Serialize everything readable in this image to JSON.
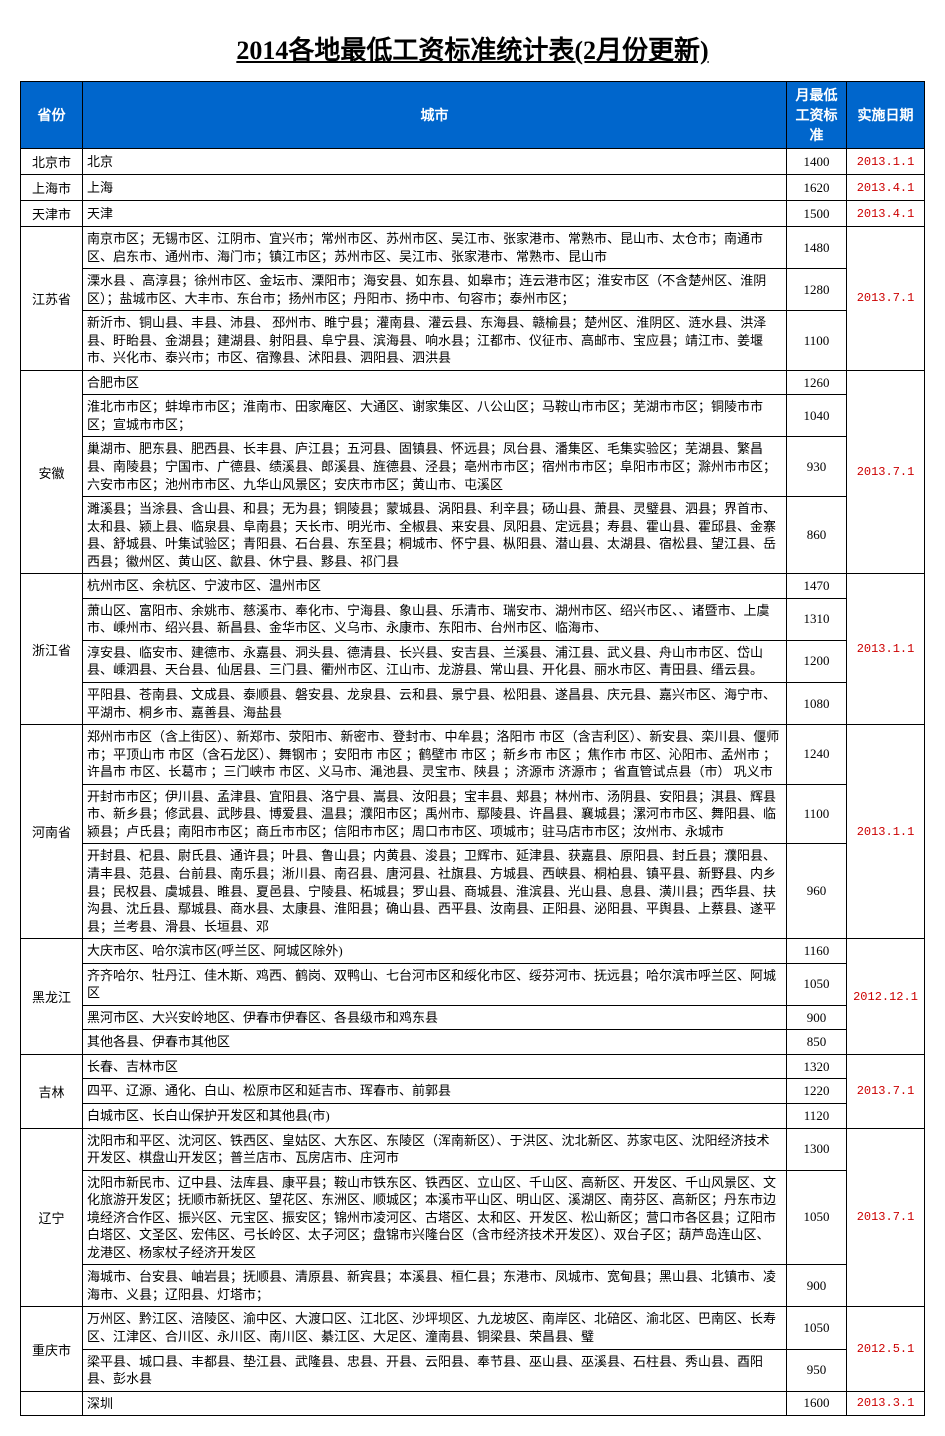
{
  "title": "2014各地最低工资标准统计表(2月份更新)",
  "columns": {
    "province": "省份",
    "city": "城市",
    "wage": "月最低工资标准",
    "date": "实施日期"
  },
  "colors": {
    "header_bg": "#0066cc",
    "header_fg": "#ffffff",
    "border": "#000000",
    "date_fg": "#cc0000",
    "background": "#ffffff"
  },
  "provinces": [
    {
      "name": "北京市",
      "date": "2013.1.1",
      "rows": [
        {
          "city": "北京",
          "wage": 1400
        }
      ]
    },
    {
      "name": "上海市",
      "date": "2013.4.1",
      "rows": [
        {
          "city": "上海",
          "wage": 1620
        }
      ]
    },
    {
      "name": "天津市",
      "date": "2013.4.1",
      "rows": [
        {
          "city": "天津",
          "wage": 1500
        }
      ]
    },
    {
      "name": "江苏省",
      "date": "2013.7.1",
      "rows": [
        {
          "city": "南京市区；无锡市区、江阴市、宜兴市；常州市区、苏州市区、吴江市、张家港市、常熟市、昆山市、太仓市；南通市区、启东市、通州市、海门市；镇江市区；苏州市区、吴江市、张家港市、常熟市、昆山市",
          "wage": 1480
        },
        {
          "city": "溧水县 、高淳县；徐州市区、金坛市、溧阳市；海安县、如东县、如皋市；连云港市区；淮安市区（不含楚州区、淮阴区）；盐城市区、大丰市、东台市；扬州市区；丹阳市、扬中市、句容市；泰州市区；",
          "wage": 1280
        },
        {
          "city": "新沂市、铜山县、丰县、沛县、 邳州市、睢宁县；灌南县、灌云县、东海县、赣榆县；楚州区、淮阴区、涟水县、洪泽县、盱眙县、金湖县；建湖县、射阳县、阜宁县、滨海县、响水县；江都市、仪征市、高邮市、宝应县；靖江市、姜堰市、兴化市、泰兴市；市区、宿豫县、沭阳县、泗阳县、泗洪县",
          "wage": 1100
        }
      ]
    },
    {
      "name": "安徽",
      "date": "2013.7.1",
      "rows": [
        {
          "city": "合肥市区",
          "wage": 1260
        },
        {
          "city": "淮北市市区；蚌埠市市区；淮南市、田家庵区、大通区、谢家集区、八公山区；马鞍山市市区；芜湖市市区；铜陵市市区；宣城市市区；",
          "wage": 1040
        },
        {
          "city": "巢湖市、肥东县、肥西县、长丰县、庐江县；五河县、固镇县、怀远县；凤台县、潘集区、毛集实验区；芜湖县、繁昌县、南陵县；宁国市、广德县、绩溪县、郎溪县、旌德县、泾县；亳州市市区；宿州市市区；阜阳市市区；滁州市市区；六安市市区；池州市市区、九华山风景区；安庆市市区；黄山市、屯溪区",
          "wage": 930
        },
        {
          "city": "濉溪县；当涂县、含山县、和县；无为县；铜陵县；蒙城县、涡阳县、利辛县；砀山县、萧县、灵璧县、泗县；界首市、太和县、颍上县、临泉县、阜南县；天长市、明光市、全椒县、来安县、凤阳县、定远县；寿县、霍山县、霍邱县、金寨县、舒城县、叶集试验区；青阳县、石台县、东至县；桐城市、怀宁县、枞阳县、潜山县、太湖县、宿松县、望江县、岳西县；徽州区、黄山区、歙县、休宁县、黟县、祁门县",
          "wage": 860
        }
      ]
    },
    {
      "name": "浙江省",
      "date": "2013.1.1",
      "rows": [
        {
          "city": "杭州市区、余杭区、宁波市区、温州市区",
          "wage": 1470
        },
        {
          "city": "萧山区、富阳市、余姚市、慈溪市、奉化市、宁海县、象山县、乐清市、瑞安市、湖州市区、绍兴市区、、诸暨市、上虞市、嵊州市、绍兴县、新昌县、金华市区、义乌市、永康市、东阳市、台州市区、临海市、",
          "wage": 1310
        },
        {
          "city": "淳安县、临安市、建德市、永嘉县、洞头县、德清县、长兴县、安吉县、兰溪县、浦江县、武义县、舟山市市区、岱山县、嵊泗县、天台县、仙居县、三门县、衢州市区、江山市、龙游县、常山县、开化县、丽水市区、青田县、缙云县。",
          "wage": 1200
        },
        {
          "city": "平阳县、苍南县、文成县、泰顺县、磐安县、龙泉县、云和县、景宁县、松阳县、遂昌县、庆元县、嘉兴市区、海宁市、平湖市、桐乡市、嘉善县、海盐县",
          "wage": 1080
        }
      ]
    },
    {
      "name": "河南省",
      "date": "2013.1.1",
      "rows": [
        {
          "city": "郑州市市区（含上街区）、新郑市、荥阳市、新密市、登封市、中牟县；洛阳市 市区（含吉利区）、新安县、栾川县、偃师市；平顶山市 市区（含石龙区）、舞钢市 ；安阳市 市区 ；鹤壁市 市区 ；新乡市 市区 ；焦作市 市区、沁阳市、孟州市 ；许昌市 市区、长葛市 ；三门峡市 市区、义马市、渑池县、灵宝市、陕县 ；济源市 济源市 ；省直管试点县（市） 巩义市",
          "wage": 1240
        },
        {
          "city": "开封市市区；伊川县、孟津县、宜阳县、洛宁县、嵩县、汝阳县；宝丰县、郏县；林州市、汤阴县、安阳县；淇县、辉县市、新乡县；修武县、武陟县、博爱县、温县；濮阳市区；禹州市、鄢陵县、许昌县、襄城县；漯河市市区、舞阳县、临颍县；卢氏县；南阳市市区；商丘市市区；信阳市市区；周口市市区、项城市；驻马店市市区；汝州市、永城市",
          "wage": 1100
        },
        {
          "city": "开封县、杞县、尉氏县、通许县；叶县、鲁山县；内黄县、浚县；卫辉市、延津县、获嘉县、原阳县、封丘县；濮阳县、清丰县、范县、台前县、南乐县；淅川县、南召县、唐河县、社旗县、方城县、西峡县、桐柏县、镇平县、新野县、内乡县；民权县、虞城县、睢县、夏邑县、宁陵县、柘城县；罗山县、商城县、淮滨县、光山县、息县、潢川县；西华县、扶沟县、沈丘县、鄢城县、商水县、太康县、淮阳县；确山县、西平县、汝南县、正阳县、泌阳县、平舆县、上蔡县、遂平县；兰考县、滑县、长垣县、邓",
          "wage": 960
        }
      ]
    },
    {
      "name": "黑龙江",
      "date": "2012.12.1",
      "rows": [
        {
          "city": "大庆市区、哈尔滨市区(呼兰区、阿城区除外)",
          "wage": 1160
        },
        {
          "city": "齐齐哈尔、牡丹江、佳木斯、鸡西、鹤岗、双鸭山、七台河市区和绥化市区、绥芬河市、抚远县；哈尔滨市呼兰区、阿城区",
          "wage": 1050
        },
        {
          "city": "黑河市区、大兴安岭地区、伊春市伊春区、各县级市和鸡东县",
          "wage": 900
        },
        {
          "city": "其他各县、伊春市其他区",
          "wage": 850
        }
      ]
    },
    {
      "name": "吉林",
      "date": "2013.7.1",
      "rows": [
        {
          "city": "长春、吉林市区",
          "wage": 1320
        },
        {
          "city": "四平、辽源、通化、白山、松原市区和延吉市、珲春市、前郭县",
          "wage": 1220
        },
        {
          "city": "白城市区、长白山保护开发区和其他县(市)",
          "wage": 1120
        }
      ]
    },
    {
      "name": "辽宁",
      "date": "2013.7.1",
      "rows": [
        {
          "city": "沈阳市和平区、沈河区、铁西区、皇姑区、大东区、东陵区（浑南新区）、于洪区、沈北新区、苏家屯区、沈阳经济技术开发区、棋盘山开发区；普兰店市、瓦房店市、庄河市",
          "wage": 1300
        },
        {
          "city": "沈阳市新民市、辽中县、法库县、康平县；鞍山市铁东区、铁西区、立山区、千山区、高新区、开发区、千山风景区、文化旅游开发区；抚顺市新抚区、望花区、东洲区、顺城区；本溪市平山区、明山区、溪湖区、南芬区、高新区；丹东市边境经济合作区、振兴区、元宝区、振安区；锦州市凌河区、古塔区、太和区、开发区、松山新区；营口市各区县；辽阳市白塔区、文圣区、宏伟区、弓长岭区、太子河区；盘锦市兴隆台区（含市经济技术开发区）、双台子区；葫芦岛连山区、龙港区、杨家杖子经济开发区",
          "wage": 1050
        },
        {
          "city": "海城市、台安县、岫岩县；抚顺县、清原县、新宾县；本溪县、桓仁县；东港市、凤城市、宽甸县；黑山县、北镇市、凌海市、义县；辽阳县、灯塔市；",
          "wage": 900
        }
      ]
    },
    {
      "name": "重庆市",
      "date": "2012.5.1",
      "rows": [
        {
          "city": "万州区、黔江区、涪陵区、渝中区、大渡口区、江北区、沙坪坝区、九龙坡区、南岸区、北碚区、渝北区、巴南区、长寿区、江津区、合川区、永川区、南川区、綦江区、大足区、潼南县、铜梁县、荣昌县、璧",
          "wage": 1050
        },
        {
          "city": "梁平县、城口县、丰都县、垫江县、武隆县、忠县、开县、云阳县、奉节县、巫山县、巫溪县、石柱县、秀山县、酉阳县、彭水县",
          "wage": 950
        }
      ]
    },
    {
      "name": "",
      "date": "2013.3.1",
      "rows": [
        {
          "city": "深圳",
          "wage": 1600
        }
      ]
    }
  ]
}
